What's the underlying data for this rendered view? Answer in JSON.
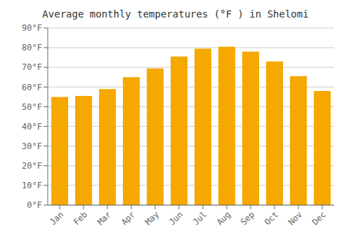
{
  "chart_data": {
    "type": "bar",
    "title": "Average monthly temperatures (°F ) in Shelomi",
    "categories": [
      "Jan",
      "Feb",
      "Mar",
      "Apr",
      "May",
      "Jun",
      "Jul",
      "Aug",
      "Sep",
      "Oct",
      "Nov",
      "Dec"
    ],
    "values": [
      55,
      55.5,
      59,
      65,
      69.5,
      75.5,
      79.5,
      80.5,
      78,
      73,
      65.5,
      58
    ],
    "color": "#F5A800",
    "ylim": [
      0,
      90
    ],
    "yticks": [
      {
        "value": 0,
        "label": "0°F"
      },
      {
        "value": 10,
        "label": "10°F"
      },
      {
        "value": 20,
        "label": "20°F"
      },
      {
        "value": 30,
        "label": "30°F"
      },
      {
        "value": 40,
        "label": "40°F"
      },
      {
        "value": 50,
        "label": "50°F"
      },
      {
        "value": 60,
        "label": "60°F"
      },
      {
        "value": 70,
        "label": "70°F"
      },
      {
        "value": 80,
        "label": "80°F"
      },
      {
        "value": 90,
        "label": "90°F"
      }
    ],
    "grid": true
  }
}
